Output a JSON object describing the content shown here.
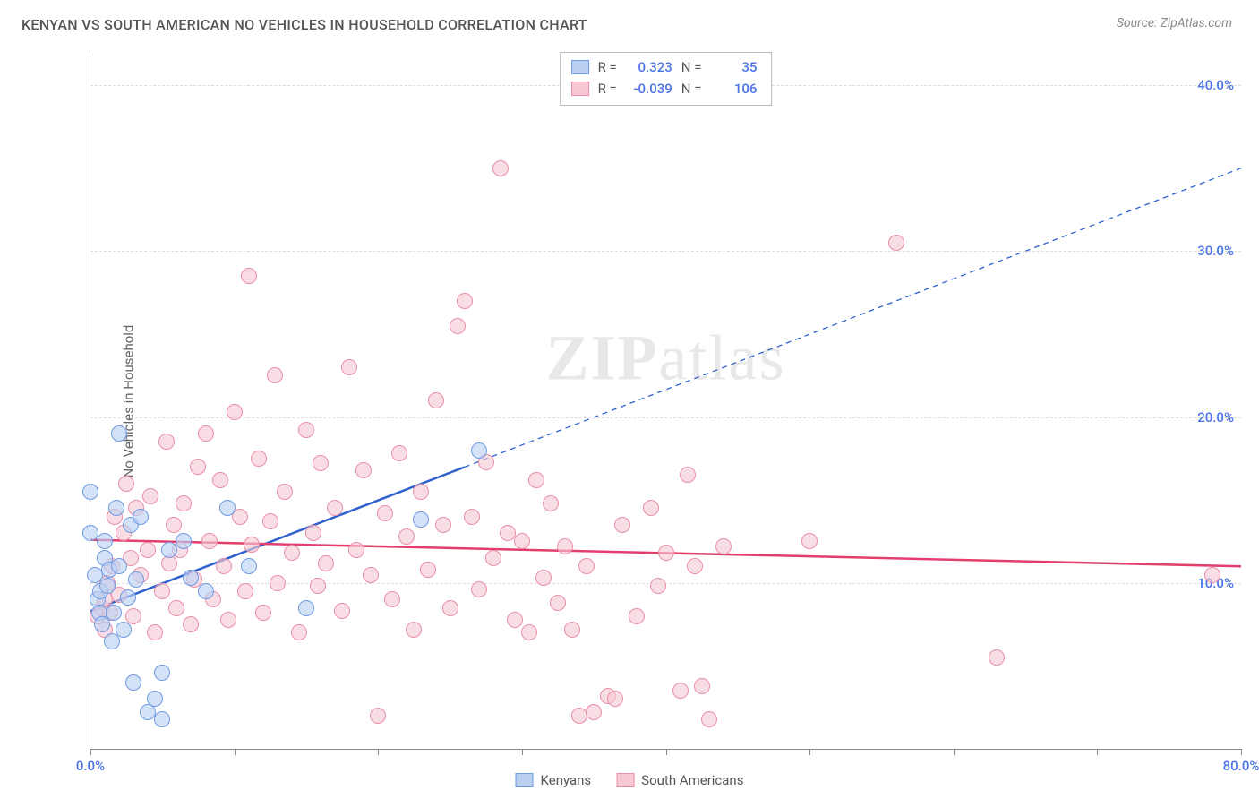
{
  "title": "KENYAN VS SOUTH AMERICAN NO VEHICLES IN HOUSEHOLD CORRELATION CHART",
  "source_prefix": "Source: ",
  "source": "ZipAtlas.com",
  "yaxis_label": "No Vehicles in Household",
  "watermark": {
    "bold": "ZIP",
    "rest": "atlas"
  },
  "chart": {
    "type": "scatter",
    "xlim": [
      0,
      80
    ],
    "ylim": [
      0,
      42
    ],
    "ytick_values": [
      10,
      20,
      30,
      40
    ],
    "ytick_labels": [
      "10.0%",
      "20.0%",
      "30.0%",
      "40.0%"
    ],
    "xtick_values": [
      0,
      10,
      20,
      30,
      40,
      50,
      60,
      70,
      80
    ],
    "xtick_labels_shown": {
      "0": "0.0%",
      "80": "80.0%"
    },
    "grid_color": "#dddddd",
    "axis_color": "#888888",
    "y_label_color": "#4a74e8",
    "background": "#ffffff",
    "marker_radius": 9,
    "marker_border_width": 1.5
  },
  "series": [
    {
      "name": "Kenyans",
      "fill": "#b9d0f2",
      "stroke": "#6f9ae3",
      "line_color": "#2f62cf",
      "line_width": 2.5,
      "R": "0.323",
      "N": "35",
      "trend": {
        "x1": 0,
        "y1": 8.3,
        "x2": 80,
        "y2": 35.0,
        "solid_until_x": 26
      },
      "points": [
        [
          0,
          15.5
        ],
        [
          0,
          13
        ],
        [
          0.3,
          10.5
        ],
        [
          0.5,
          9
        ],
        [
          0.6,
          8.2
        ],
        [
          0.7,
          9.5
        ],
        [
          0.8,
          7.5
        ],
        [
          1,
          11.5
        ],
        [
          1,
          12.5
        ],
        [
          1.2,
          9.8
        ],
        [
          1.3,
          10.8
        ],
        [
          1.5,
          6.5
        ],
        [
          1.6,
          8.2
        ],
        [
          1.8,
          14.5
        ],
        [
          2,
          19
        ],
        [
          2,
          11
        ],
        [
          2.3,
          7.2
        ],
        [
          2.6,
          9.1
        ],
        [
          2.8,
          13.5
        ],
        [
          3,
          4.0
        ],
        [
          3.2,
          10.2
        ],
        [
          3.5,
          14.0
        ],
        [
          4,
          2.2
        ],
        [
          4.5,
          3.0
        ],
        [
          5,
          4.6
        ],
        [
          5,
          1.8
        ],
        [
          5.5,
          12.0
        ],
        [
          6.5,
          12.5
        ],
        [
          7,
          10.3
        ],
        [
          8,
          9.5
        ],
        [
          9.5,
          14.5
        ],
        [
          11,
          11.0
        ],
        [
          15,
          8.5
        ],
        [
          23,
          13.8
        ],
        [
          27,
          18.0
        ]
      ]
    },
    {
      "name": "South Americans",
      "fill": "#f6c9d4",
      "stroke": "#e98fa8",
      "line_color": "#e23f6e",
      "line_width": 2.5,
      "R": "-0.039",
      "N": "106",
      "trend": {
        "x1": 0,
        "y1": 12.6,
        "x2": 80,
        "y2": 11.0,
        "solid_until_x": 80
      },
      "points": [
        [
          0.5,
          8
        ],
        [
          0.8,
          8.5
        ],
        [
          1,
          7.2
        ],
        [
          1,
          9.0
        ],
        [
          1.2,
          10.0
        ],
        [
          1.4,
          8.2
        ],
        [
          1.5,
          11
        ],
        [
          1.7,
          14
        ],
        [
          2,
          9.3
        ],
        [
          2.3,
          13
        ],
        [
          2.5,
          16
        ],
        [
          2.8,
          11.5
        ],
        [
          3,
          8
        ],
        [
          3.2,
          14.5
        ],
        [
          3.5,
          10.5
        ],
        [
          4,
          12
        ],
        [
          4.2,
          15.2
        ],
        [
          4.5,
          7
        ],
        [
          5,
          9.5
        ],
        [
          5.3,
          18.5
        ],
        [
          5.5,
          11.2
        ],
        [
          5.8,
          13.5
        ],
        [
          6,
          8.5
        ],
        [
          6.2,
          12
        ],
        [
          6.5,
          14.8
        ],
        [
          7,
          7.5
        ],
        [
          7.2,
          10.2
        ],
        [
          7.5,
          17
        ],
        [
          8,
          19
        ],
        [
          8.3,
          12.5
        ],
        [
          8.5,
          9
        ],
        [
          9,
          16.2
        ],
        [
          9.3,
          11
        ],
        [
          9.6,
          7.8
        ],
        [
          10,
          20.3
        ],
        [
          10.4,
          14
        ],
        [
          10.8,
          9.5
        ],
        [
          11,
          28.5
        ],
        [
          11.2,
          12.3
        ],
        [
          11.7,
          17.5
        ],
        [
          12,
          8.2
        ],
        [
          12.5,
          13.7
        ],
        [
          12.8,
          22.5
        ],
        [
          13,
          10
        ],
        [
          13.5,
          15.5
        ],
        [
          14,
          11.8
        ],
        [
          14.5,
          7
        ],
        [
          15,
          19.2
        ],
        [
          15.5,
          13
        ],
        [
          15.8,
          9.8
        ],
        [
          16,
          17.2
        ],
        [
          16.4,
          11.2
        ],
        [
          17,
          14.5
        ],
        [
          17.5,
          8.3
        ],
        [
          18,
          23
        ],
        [
          18.5,
          12
        ],
        [
          19,
          16.8
        ],
        [
          19.5,
          10.5
        ],
        [
          20,
          2.0
        ],
        [
          20.5,
          14.2
        ],
        [
          21,
          9
        ],
        [
          21.5,
          17.8
        ],
        [
          22,
          12.8
        ],
        [
          22.5,
          7.2
        ],
        [
          23,
          15.5
        ],
        [
          23.5,
          10.8
        ],
        [
          24,
          21
        ],
        [
          24.5,
          13.5
        ],
        [
          25,
          8.5
        ],
        [
          25.5,
          25.5
        ],
        [
          26,
          27
        ],
        [
          26.5,
          14
        ],
        [
          27,
          9.6
        ],
        [
          27.5,
          17.3
        ],
        [
          28,
          11.5
        ],
        [
          28.5,
          35
        ],
        [
          29,
          13
        ],
        [
          29.5,
          7.8
        ],
        [
          30,
          12.5
        ],
        [
          30.5,
          7.0
        ],
        [
          31,
          16.2
        ],
        [
          31.5,
          10.3
        ],
        [
          32,
          14.8
        ],
        [
          32.5,
          8.8
        ],
        [
          33,
          12.2
        ],
        [
          33.5,
          7.2
        ],
        [
          34,
          2.0
        ],
        [
          34.5,
          11
        ],
        [
          35,
          2.2
        ],
        [
          36,
          3.2
        ],
        [
          36.5,
          3.0
        ],
        [
          37,
          13.5
        ],
        [
          38,
          8
        ],
        [
          39,
          14.5
        ],
        [
          39.5,
          9.8
        ],
        [
          40,
          11.8
        ],
        [
          41,
          3.5
        ],
        [
          41.5,
          16.5
        ],
        [
          42,
          11
        ],
        [
          42.5,
          3.8
        ],
        [
          43,
          1.8
        ],
        [
          44,
          12.2
        ],
        [
          50,
          12.5
        ],
        [
          56,
          30.5
        ],
        [
          63,
          5.5
        ],
        [
          78,
          10.5
        ]
      ]
    }
  ],
  "stats_labels": {
    "R": "R =",
    "N": "N ="
  },
  "legend": [
    {
      "label": "Kenyans",
      "fill": "#b9d0f2",
      "stroke": "#6f9ae3"
    },
    {
      "label": "South Americans",
      "fill": "#f6c9d4",
      "stroke": "#e98fa8"
    }
  ]
}
